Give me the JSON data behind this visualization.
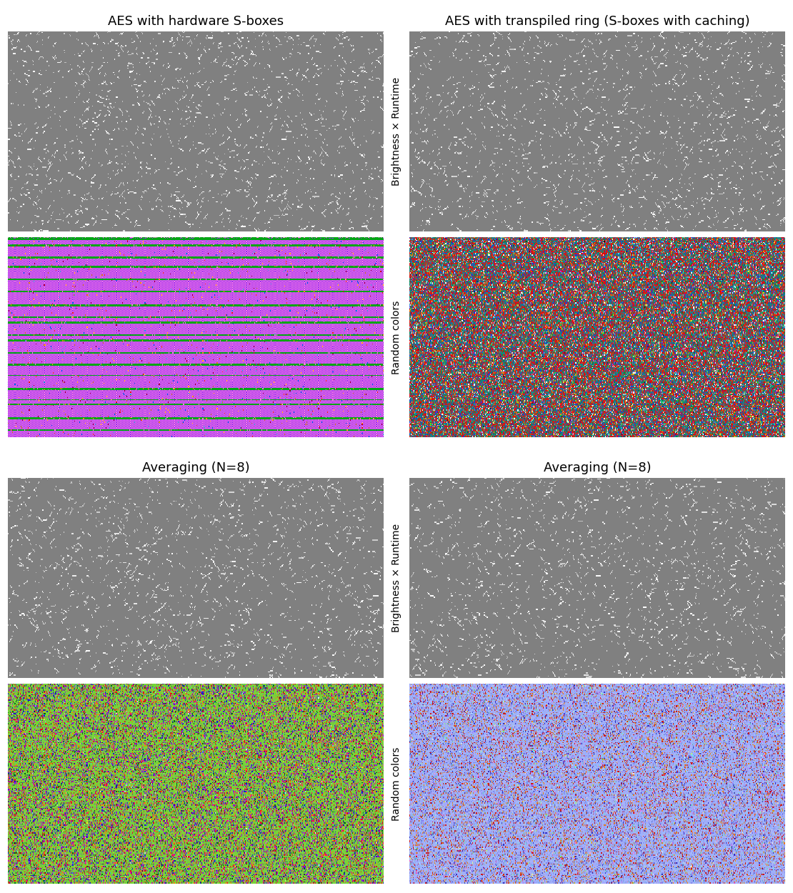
{
  "col_titles": [
    "AES with hardware S-boxes",
    "AES with transpiled ring (S-boxes with caching)"
  ],
  "bot_col_titles": [
    "Averaging (N=8)",
    "Averaging (N=8)"
  ],
  "row_labels_top": [
    "Brightness × Runtime",
    "Random colors"
  ],
  "row_labels_bot": [
    "Brightness × Runtime",
    "Random colors"
  ],
  "background_color": "#ffffff",
  "title_fontsize": 13,
  "label_fontsize": 10,
  "figsize": [
    11.1,
    12.5
  ],
  "dpi": 100,
  "gray_value": 0.502,
  "white_dot_density": 0.018,
  "purple": [
    0.58,
    0.18,
    0.96
  ],
  "pink": [
    1.0,
    0.5,
    0.88
  ],
  "green_stripe": [
    0.0,
    0.65,
    0.08
  ],
  "blue_stripe": [
    0.25,
    0.25,
    0.95
  ],
  "teal": [
    0.12,
    0.5,
    0.52
  ],
  "red": [
    0.85,
    0.08,
    0.08
  ],
  "lt_green": [
    0.47,
    0.82,
    0.23
  ],
  "lt_blue": [
    0.63,
    0.69,
    0.98
  ]
}
